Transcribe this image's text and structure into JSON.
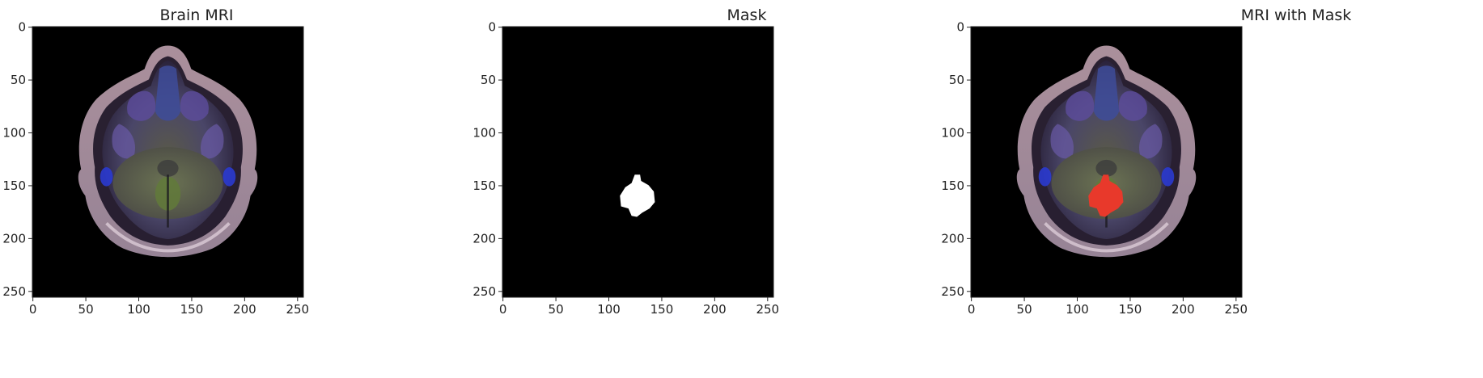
{
  "panels": [
    {
      "id": "brain-mri",
      "title": "Brain MRI",
      "image": "brain-mri-axial-slice",
      "x_ticks": [
        "0",
        "50",
        "100",
        "150",
        "200",
        "250"
      ],
      "y_ticks": [
        "0",
        "50",
        "100",
        "150",
        "200",
        "250"
      ]
    },
    {
      "id": "mask",
      "title": "Mask",
      "image": "binary-tumor-mask",
      "x_ticks": [
        "0",
        "50",
        "100",
        "150",
        "200",
        "250"
      ],
      "y_ticks": [
        "0",
        "50",
        "100",
        "150",
        "200",
        "250"
      ]
    },
    {
      "id": "mri-with-mask",
      "title": "MRI with Mask",
      "image": "brain-mri-with-red-tumor-overlay",
      "x_ticks": [
        "0",
        "50",
        "100",
        "150",
        "200",
        "250"
      ],
      "y_ticks": [
        "0",
        "50",
        "100",
        "150",
        "200",
        "250"
      ]
    }
  ],
  "colors": {
    "background": "#000000",
    "mask": "#ffffff",
    "overlay": "#e8392b"
  }
}
